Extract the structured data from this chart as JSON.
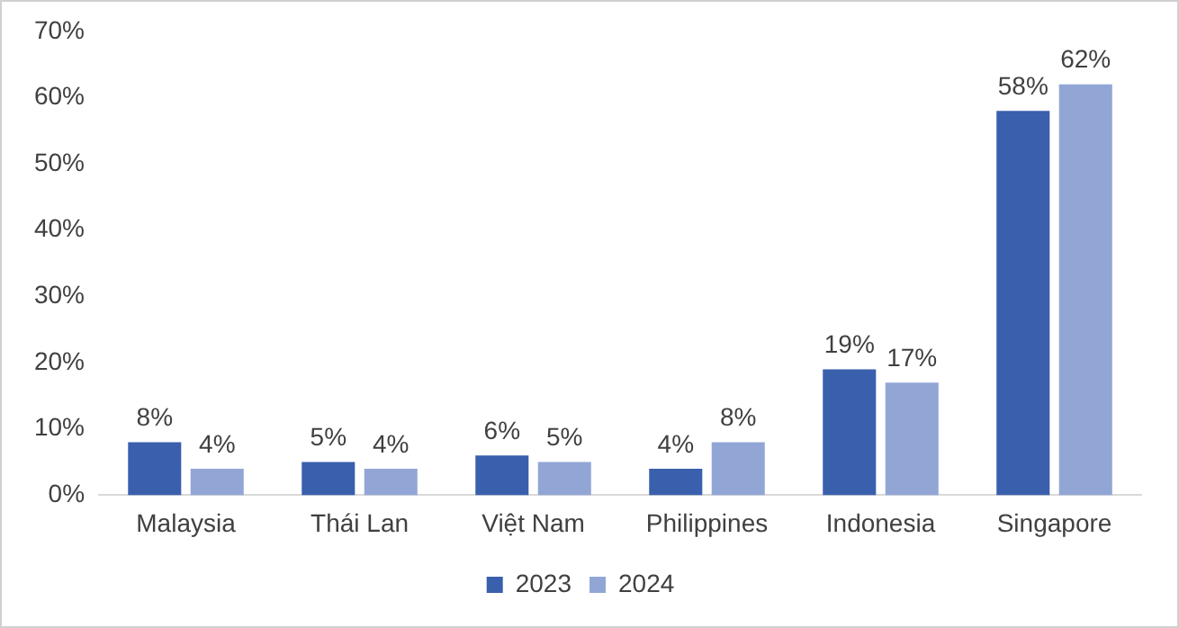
{
  "chart_data": {
    "type": "bar",
    "categories": [
      "Malaysia",
      "Thái Lan",
      "Việt Nam",
      "Philippines",
      "Indonesia",
      "Singapore"
    ],
    "series": [
      {
        "name": "2023",
        "color": "#3a5fad",
        "values": [
          8,
          5,
          6,
          4,
          19,
          58
        ],
        "value_labels": [
          "8%",
          "5%",
          "6%",
          "4%",
          "19%",
          "58%"
        ]
      },
      {
        "name": "2024",
        "color": "#92a6d6",
        "values": [
          4,
          4,
          5,
          8,
          17,
          62
        ],
        "value_labels": [
          "4%",
          "4%",
          "5%",
          "8%",
          "17%",
          "62%"
        ]
      }
    ],
    "ylim": [
      0,
      70
    ],
    "yticks": [
      {
        "value": 0,
        "label": "0%"
      },
      {
        "value": 10,
        "label": "10%"
      },
      {
        "value": 20,
        "label": "20%"
      },
      {
        "value": 30,
        "label": "30%"
      },
      {
        "value": 40,
        "label": "40%"
      },
      {
        "value": 50,
        "label": "50%"
      },
      {
        "value": 60,
        "label": "60%"
      },
      {
        "value": 70,
        "label": "70%"
      }
    ],
    "grid": false,
    "legend": "bottom"
  }
}
